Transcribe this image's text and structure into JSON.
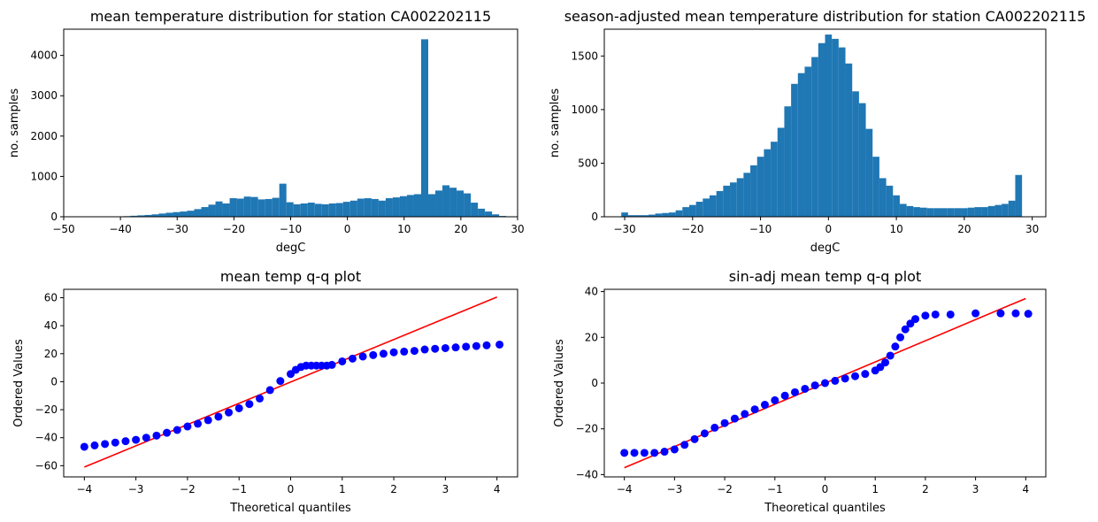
{
  "chart_data": [
    {
      "type": "bar",
      "title": "mean temperature distribution for station CA002202115",
      "xlabel": "degC",
      "ylabel": "no. samples",
      "xlim": [
        -50,
        30
      ],
      "ylim": [
        0,
        4650
      ],
      "xticks": [
        -50,
        -40,
        -30,
        -20,
        -10,
        0,
        10,
        20,
        30
      ],
      "yticks": [
        0,
        1000,
        2000,
        3000,
        4000
      ],
      "color": "#1f77b4",
      "bin_start": -47.0,
      "bin_width": 1.25,
      "values": [
        0,
        0,
        0,
        0,
        5,
        10,
        15,
        25,
        35,
        45,
        60,
        80,
        100,
        115,
        130,
        150,
        190,
        240,
        300,
        380,
        330,
        460,
        450,
        500,
        490,
        430,
        440,
        470,
        820,
        360,
        310,
        330,
        350,
        320,
        310,
        330,
        340,
        370,
        400,
        450,
        460,
        440,
        400,
        460,
        480,
        510,
        540,
        560,
        4400,
        560,
        650,
        780,
        720,
        650,
        580,
        350,
        200,
        130,
        60,
        20
      ],
      "grid": false
    },
    {
      "type": "bar",
      "title": "season-adjusted mean temperature distribution for station CA002202115",
      "xlabel": "degC",
      "ylabel": "no. samples",
      "xlim": [
        -33,
        32
      ],
      "ylim": [
        0,
        1750
      ],
      "xticks": [
        -30,
        -20,
        -10,
        0,
        10,
        20,
        30
      ],
      "yticks": [
        0,
        500,
        1000,
        1500
      ],
      "color": "#1f77b4",
      "bin_start": -30.5,
      "bin_width": 1.0,
      "values": [
        40,
        15,
        15,
        15,
        20,
        30,
        35,
        40,
        60,
        90,
        110,
        140,
        170,
        200,
        240,
        290,
        320,
        360,
        410,
        480,
        560,
        630,
        700,
        830,
        1030,
        1240,
        1340,
        1400,
        1490,
        1620,
        1700,
        1660,
        1580,
        1430,
        1170,
        1060,
        820,
        560,
        360,
        290,
        200,
        120,
        100,
        90,
        85,
        80,
        80,
        80,
        80,
        80,
        80,
        85,
        90,
        90,
        100,
        110,
        120,
        150,
        390
      ]
    },
    {
      "type": "scatter",
      "title": "mean temp q-q plot",
      "xlabel": "Theoretical quantiles",
      "ylabel": "Ordered Values",
      "xlim": [
        -4.4,
        4.4
      ],
      "ylim": [
        -68,
        66
      ],
      "xticks": [
        -4,
        -3,
        -2,
        -1,
        0,
        1,
        2,
        3,
        4
      ],
      "yticks": [
        -60,
        -40,
        -20,
        0,
        20,
        40,
        60
      ],
      "points": [
        [
          -4.0,
          -46.5
        ],
        [
          -3.8,
          -45.5
        ],
        [
          -3.6,
          -44.5
        ],
        [
          -3.4,
          -43.5
        ],
        [
          -3.2,
          -42.5
        ],
        [
          -3.0,
          -41.5
        ],
        [
          -2.8,
          -40.0
        ],
        [
          -2.6,
          -38.5
        ],
        [
          -2.4,
          -36.5
        ],
        [
          -2.2,
          -34.5
        ],
        [
          -2.0,
          -32.0
        ],
        [
          -1.8,
          -30.0
        ],
        [
          -1.6,
          -27.5
        ],
        [
          -1.4,
          -25.0
        ],
        [
          -1.2,
          -22.0
        ],
        [
          -1.0,
          -19.0
        ],
        [
          -0.8,
          -16.0
        ],
        [
          -0.6,
          -12.0
        ],
        [
          -0.4,
          -6.0
        ],
        [
          -0.2,
          0.5
        ],
        [
          0.0,
          5.5
        ],
        [
          0.1,
          8.5
        ],
        [
          0.2,
          10.5
        ],
        [
          0.3,
          11.5
        ],
        [
          0.4,
          11.5
        ],
        [
          0.5,
          11.5
        ],
        [
          0.6,
          11.5
        ],
        [
          0.7,
          11.5
        ],
        [
          0.8,
          12.0
        ],
        [
          1.0,
          14.5
        ],
        [
          1.2,
          16.5
        ],
        [
          1.4,
          18.0
        ],
        [
          1.6,
          19.0
        ],
        [
          1.8,
          20.0
        ],
        [
          2.0,
          21.0
        ],
        [
          2.2,
          21.5
        ],
        [
          2.4,
          22.0
        ],
        [
          2.6,
          23.0
        ],
        [
          2.8,
          23.5
        ],
        [
          3.0,
          24.0
        ],
        [
          3.2,
          24.5
        ],
        [
          3.4,
          25.0
        ],
        [
          3.6,
          25.5
        ],
        [
          3.8,
          26.0
        ],
        [
          4.05,
          26.5
        ]
      ],
      "fit_line": [
        [
          -4.0,
          -61.0
        ],
        [
          4.0,
          60.5
        ]
      ],
      "point_color": "#0000ff",
      "line_color": "#ff0000"
    },
    {
      "type": "scatter",
      "title": "sin-adj mean temp q-q plot",
      "xlabel": "Theoretical quantiles",
      "ylabel": "Ordered Values",
      "xlim": [
        -4.4,
        4.4
      ],
      "ylim": [
        -41,
        41
      ],
      "xticks": [
        -4,
        -3,
        -2,
        -1,
        0,
        1,
        2,
        3,
        4
      ],
      "yticks": [
        -40,
        -20,
        0,
        20,
        40
      ],
      "points": [
        [
          -4.0,
          -30.5
        ],
        [
          -3.8,
          -30.5
        ],
        [
          -3.6,
          -30.5
        ],
        [
          -3.4,
          -30.5
        ],
        [
          -3.2,
          -30.0
        ],
        [
          -3.0,
          -29.0
        ],
        [
          -2.8,
          -27.0
        ],
        [
          -2.6,
          -24.5
        ],
        [
          -2.4,
          -22.0
        ],
        [
          -2.2,
          -19.5
        ],
        [
          -2.0,
          -17.5
        ],
        [
          -1.8,
          -15.5
        ],
        [
          -1.6,
          -13.5
        ],
        [
          -1.4,
          -11.5
        ],
        [
          -1.2,
          -9.5
        ],
        [
          -1.0,
          -7.5
        ],
        [
          -0.8,
          -5.5
        ],
        [
          -0.6,
          -4.0
        ],
        [
          -0.4,
          -2.5
        ],
        [
          -0.2,
          -1.0
        ],
        [
          0.0,
          0.0
        ],
        [
          0.2,
          1.0
        ],
        [
          0.4,
          2.0
        ],
        [
          0.6,
          3.0
        ],
        [
          0.8,
          4.0
        ],
        [
          1.0,
          5.5
        ],
        [
          1.1,
          7.0
        ],
        [
          1.2,
          9.0
        ],
        [
          1.3,
          12.0
        ],
        [
          1.4,
          16.0
        ],
        [
          1.5,
          20.0
        ],
        [
          1.6,
          23.5
        ],
        [
          1.7,
          26.0
        ],
        [
          1.8,
          28.0
        ],
        [
          2.0,
          29.5
        ],
        [
          2.2,
          30.0
        ],
        [
          2.5,
          30.0
        ],
        [
          3.0,
          30.5
        ],
        [
          3.5,
          30.5
        ],
        [
          3.8,
          30.5
        ],
        [
          4.05,
          30.3
        ]
      ],
      "fit_line": [
        [
          -4.0,
          -37.0
        ],
        [
          4.0,
          37.0
        ]
      ],
      "point_color": "#0000ff",
      "line_color": "#ff0000"
    }
  ]
}
